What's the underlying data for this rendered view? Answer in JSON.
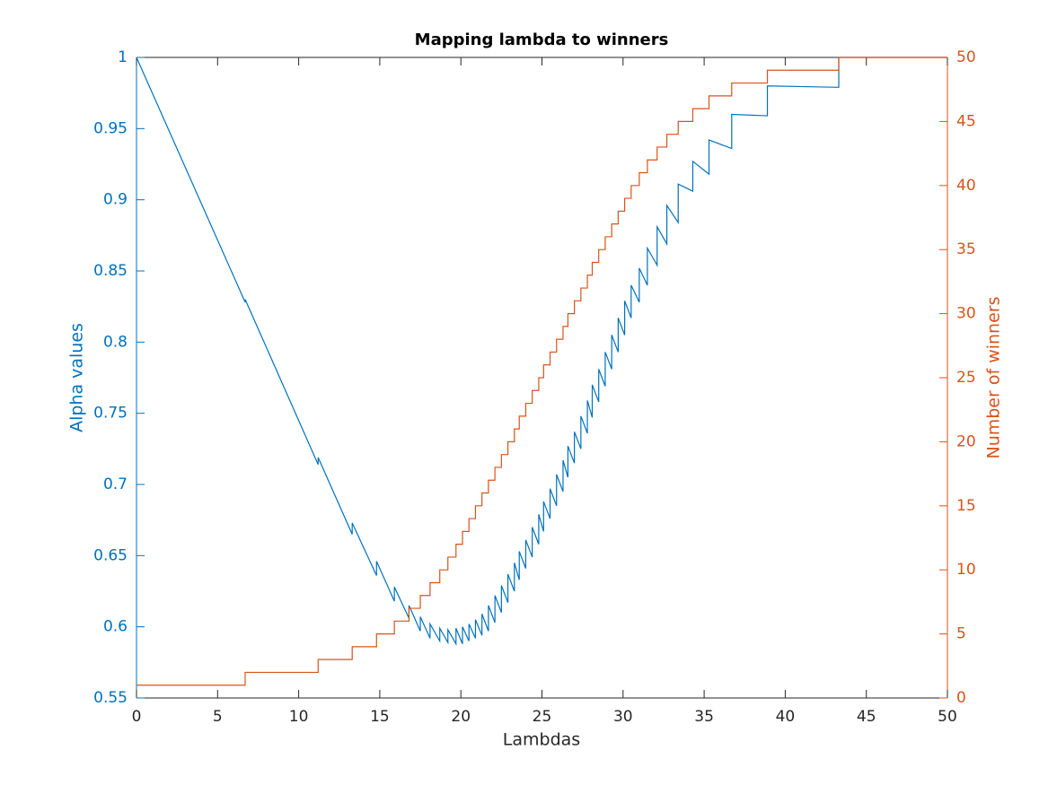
{
  "chart_data": {
    "type": "line",
    "title": "Mapping lambda to winners",
    "xlabel": "Lambdas",
    "ylabel": "Alpha values",
    "y2label": "Number of winners",
    "xlim": [
      0,
      50
    ],
    "xticks": [
      0,
      5,
      10,
      15,
      20,
      25,
      30,
      35,
      40,
      45,
      50
    ],
    "ylim": [
      0.55,
      1
    ],
    "yticks": [
      0.55,
      0.6,
      0.65,
      0.7,
      0.75,
      0.8,
      0.85,
      0.9,
      0.95,
      1
    ],
    "y2lim": [
      0,
      50
    ],
    "y2ticks": [
      0,
      5,
      10,
      15,
      20,
      25,
      30,
      35,
      40,
      45,
      50
    ],
    "grid": false,
    "x": [
      0,
      6.7,
      6.7,
      11.2,
      11.2,
      13.3,
      13.3,
      14.8,
      14.8,
      15.9,
      15.9,
      16.8,
      16.8,
      17.5,
      17.5,
      18.1,
      18.1,
      18.7,
      18.7,
      19.2,
      19.2,
      19.7,
      19.7,
      20.1,
      20.1,
      20.5,
      20.5,
      20.9,
      20.9,
      21.3,
      21.3,
      21.7,
      21.7,
      22.1,
      22.1,
      22.5,
      22.5,
      22.9,
      22.9,
      23.3,
      23.3,
      23.6,
      23.6,
      24.0,
      24.0,
      24.4,
      24.4,
      24.8,
      24.8,
      25.1,
      25.1,
      25.5,
      25.5,
      25.9,
      25.9,
      26.3,
      26.3,
      26.6,
      26.6,
      27.0,
      27.0,
      27.4,
      27.4,
      27.8,
      27.8,
      28.1,
      28.1,
      28.5,
      28.5,
      28.9,
      28.9,
      29.3,
      29.3,
      29.7,
      29.7,
      30.1,
      30.1,
      30.5,
      30.5,
      31.0,
      31.0,
      31.5,
      31.5,
      32.1,
      32.1,
      32.7,
      32.7,
      33.4,
      33.4,
      34.3,
      34.3,
      35.3,
      35.3,
      36.7,
      36.7,
      38.9,
      38.9,
      43.3,
      43.3,
      50
    ],
    "series": [
      {
        "color": "#0072BD",
        "axis": "y",
        "values": [
          1,
          0.828,
          0.83,
          0.714,
          0.719,
          0.665,
          0.673,
          0.636,
          0.646,
          0.618,
          0.628,
          0.606,
          0.615,
          0.597,
          0.607,
          0.592,
          0.602,
          0.59,
          0.599,
          0.589,
          0.598,
          0.588,
          0.599,
          0.588,
          0.6,
          0.59,
          0.602,
          0.592,
          0.605,
          0.594,
          0.609,
          0.597,
          0.615,
          0.603,
          0.622,
          0.61,
          0.629,
          0.617,
          0.637,
          0.625,
          0.645,
          0.633,
          0.653,
          0.641,
          0.661,
          0.649,
          0.67,
          0.658,
          0.679,
          0.667,
          0.688,
          0.676,
          0.697,
          0.685,
          0.707,
          0.695,
          0.717,
          0.705,
          0.727,
          0.715,
          0.737,
          0.725,
          0.748,
          0.736,
          0.759,
          0.747,
          0.77,
          0.758,
          0.781,
          0.769,
          0.793,
          0.781,
          0.805,
          0.793,
          0.817,
          0.805,
          0.829,
          0.817,
          0.84,
          0.828,
          0.852,
          0.84,
          0.866,
          0.854,
          0.881,
          0.869,
          0.896,
          0.884,
          0.911,
          0.906,
          0.927,
          0.918,
          0.942,
          0.936,
          0.96,
          0.959,
          0.98,
          0.979,
          1,
          1
        ]
      },
      {
        "color": "#D95319",
        "axis": "y2",
        "values": [
          1,
          1,
          2,
          2,
          3,
          3,
          4,
          4,
          5,
          5,
          6,
          6,
          7,
          7,
          8,
          8,
          9,
          9,
          10,
          10,
          11,
          11,
          12,
          12,
          13,
          13,
          14,
          14,
          15,
          15,
          16,
          16,
          17,
          17,
          18,
          18,
          19,
          19,
          20,
          20,
          21,
          21,
          22,
          22,
          23,
          23,
          24,
          24,
          25,
          25,
          26,
          26,
          27,
          27,
          28,
          28,
          29,
          29,
          30,
          30,
          31,
          31,
          32,
          32,
          33,
          33,
          34,
          34,
          35,
          35,
          36,
          36,
          37,
          37,
          38,
          38,
          39,
          39,
          40,
          40,
          41,
          41,
          42,
          42,
          43,
          43,
          44,
          44,
          45,
          45,
          46,
          46,
          47,
          47,
          48,
          48,
          49,
          49,
          50,
          50
        ]
      }
    ]
  }
}
